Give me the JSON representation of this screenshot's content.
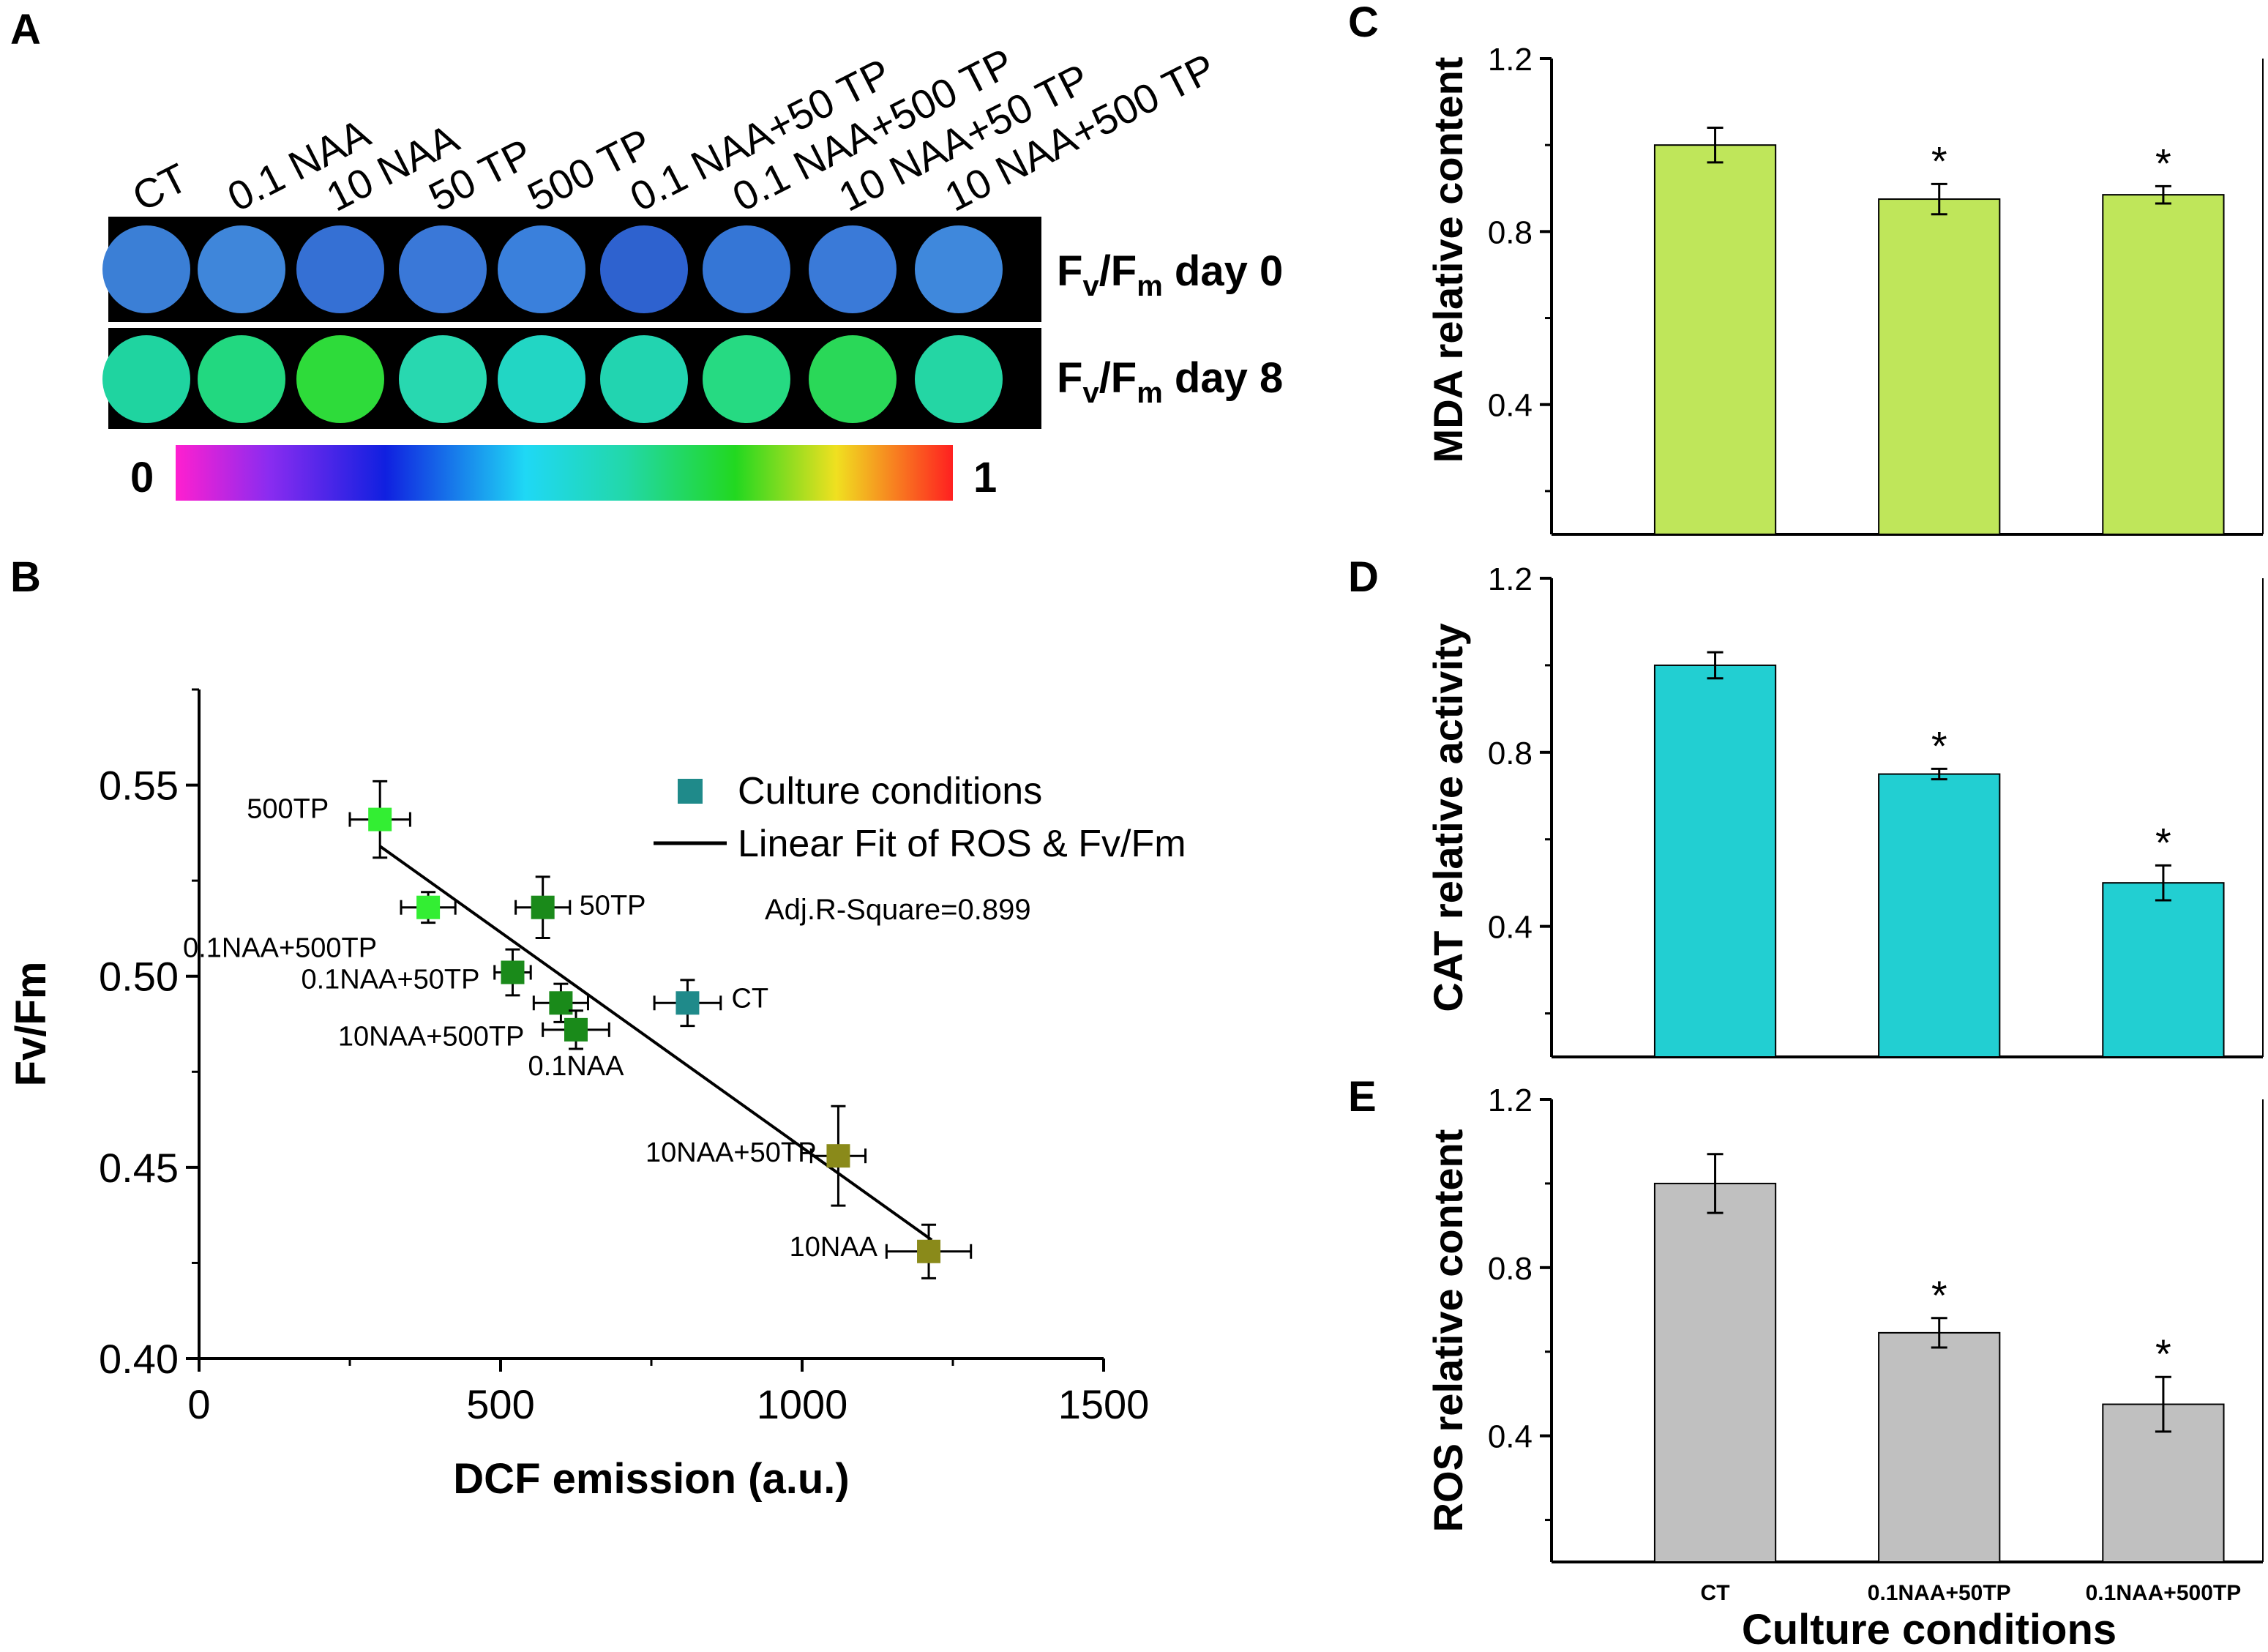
{
  "panels": {
    "A": "A",
    "B": "B",
    "C": "C",
    "D": "D",
    "E": "E"
  },
  "panelA": {
    "columns": [
      "CT",
      "0.1 NAA",
      "10 NAA",
      "50 TP",
      "500 TP",
      "0.1 NAA+50 TP",
      "0.1 NAA+500 TP",
      "10 NAA+50 TP",
      "10 NAA+500 TP"
    ],
    "rows": [
      {
        "label_main": "F",
        "label_sub1": "v",
        "label_mid": "/F",
        "label_sub2": "m",
        "label_tail": " day 0"
      },
      {
        "label_main": "F",
        "label_sub1": "v",
        "label_mid": "/F",
        "label_sub2": "m",
        "label_tail": "  day 8"
      }
    ],
    "scale_min": "0",
    "scale_max": "1",
    "colors": {
      "day0": [
        "#3b7fd6",
        "#3f86da",
        "#3570d4",
        "#3a78d8",
        "#3a80dc",
        "#2e62cf",
        "#3576d6",
        "#3a7ad8",
        "#3f88dc"
      ],
      "day8": [
        "#1fd4a0",
        "#22d880",
        "#2edb3a",
        "#28d8b0",
        "#22d6c4",
        "#22d4b0",
        "#26da82",
        "#2ad858",
        "#24d6a4"
      ]
    }
  },
  "chart_data": [
    {
      "panel": "B",
      "type": "scatter",
      "xlabel": "DCF emission (a.u.)",
      "ylabel": "Fv/Fm",
      "xlim": [
        0,
        1500
      ],
      "ylim": [
        0.4,
        0.575
      ],
      "xticks": [
        "0",
        "500",
        "1000",
        "1500"
      ],
      "yticks": [
        "0.40",
        "0.45",
        "0.50",
        "0.55"
      ],
      "legend": {
        "series": "Culture conditions",
        "fit": "Linear Fit of ROS & Fv/Fm",
        "r2": "Adj.R-Square=0.899"
      },
      "fit_line": {
        "x": [
          300,
          1215
        ],
        "y": [
          0.534,
          0.431
        ]
      },
      "points": [
        {
          "label": "500TP",
          "x": 300,
          "y": 0.541,
          "xerr": 50,
          "yerr": 0.01,
          "color": "#33ee33"
        },
        {
          "label": "0.1NAA+500TP",
          "x": 380,
          "y": 0.518,
          "xerr": 45,
          "yerr": 0.004,
          "color": "#33ee33"
        },
        {
          "label": "50TP",
          "x": 570,
          "y": 0.518,
          "xerr": 45,
          "yerr": 0.008,
          "color": "#1a8a1a"
        },
        {
          "label": "0.1NAA+50TP",
          "x": 520,
          "y": 0.501,
          "xerr": 30,
          "yerr": 0.006,
          "color": "#1a8a1a"
        },
        {
          "label": "10NAA+500TP",
          "x": 600,
          "y": 0.493,
          "xerr": 45,
          "yerr": 0.005,
          "color": "#1a8a1a"
        },
        {
          "label": "0.1NAA",
          "x": 625,
          "y": 0.486,
          "xerr": 55,
          "yerr": 0.005,
          "color": "#1a8a1a"
        },
        {
          "label": "CT",
          "x": 810,
          "y": 0.493,
          "xerr": 55,
          "yerr": 0.006,
          "color": "#1f8a8a"
        },
        {
          "label": "10NAA+50TP",
          "x": 1060,
          "y": 0.453,
          "xerr": 45,
          "yerr": 0.013,
          "color": "#8a8a1a"
        },
        {
          "label": "10NAA",
          "x": 1210,
          "y": 0.428,
          "xerr": 70,
          "yerr": 0.007,
          "color": "#8a8a1a"
        }
      ]
    },
    {
      "panel": "C",
      "type": "bar",
      "ylabel": "MDA relative content",
      "categories": [
        "CT",
        "0.1NAA+50TP",
        "0.1NAA+500TP"
      ],
      "values": [
        1.0,
        0.875,
        0.885
      ],
      "errors": [
        0.04,
        0.035,
        0.02
      ],
      "significant": [
        "",
        "*",
        "*"
      ],
      "ylim": [
        0.1,
        1.2
      ],
      "yticks": [
        "0.4",
        "0.8",
        "1.2"
      ],
      "color": "#bfe65a"
    },
    {
      "panel": "D",
      "type": "bar",
      "ylabel": "CAT relative activity",
      "categories": [
        "CT",
        "0.1NAA+50TP",
        "0.1NAA+500TP"
      ],
      "values": [
        1.0,
        0.75,
        0.5
      ],
      "errors": [
        0.03,
        0.012,
        0.04
      ],
      "significant": [
        "",
        "*",
        "*"
      ],
      "ylim": [
        0.1,
        1.2
      ],
      "yticks": [
        "0.4",
        "0.8",
        "1.2"
      ],
      "color": "#22cfd2"
    },
    {
      "panel": "E",
      "type": "bar",
      "ylabel": "ROS relative content",
      "xlabel": "Culture conditions",
      "categories": [
        "CT",
        "0.1NAA+50TP",
        "0.1NAA+500TP"
      ],
      "values": [
        1.0,
        0.645,
        0.475
      ],
      "errors": [
        0.07,
        0.035,
        0.065
      ],
      "significant": [
        "",
        "*",
        "*"
      ],
      "ylim": [
        0.1,
        1.2
      ],
      "yticks": [
        "0.4",
        "0.8",
        "1.2"
      ],
      "color": "#c0c0c0"
    }
  ]
}
